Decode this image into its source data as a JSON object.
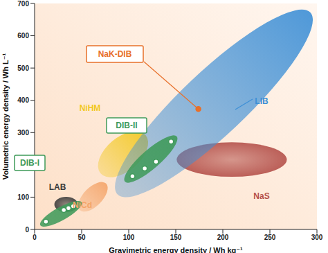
{
  "chart_data": {
    "type": "scatter",
    "x_label": "Gravimetric energy density / Wh kg⁻¹",
    "y_label": "Volumetric energy density / Wh L⁻¹",
    "xlim": [
      0,
      300
    ],
    "xticks": [
      0,
      50,
      100,
      150,
      200,
      250,
      300
    ],
    "ylim": [
      0,
      700
    ],
    "yticks": [
      0,
      100,
      200,
      300,
      400,
      500,
      600,
      700
    ],
    "regions": [
      {
        "name": "NiHM",
        "color": "#f2c81e",
        "major_axis": [
          [
            70,
            174
          ],
          [
            118,
            292
          ]
        ],
        "minor_axis": 18
      },
      {
        "name": "NiCd",
        "color": "#f4a469",
        "major_axis": [
          [
            48,
            60
          ],
          [
            76,
            142
          ]
        ],
        "minor_axis": 10
      },
      {
        "name": "LAB",
        "color": "#3a3a3a",
        "x_range": [
          21,
          46
        ],
        "y_range": [
          54,
          101
        ]
      },
      {
        "name": "NaS",
        "color": "#b4504a",
        "x_range": [
          151,
          268
        ],
        "y_range": [
          163,
          270
        ]
      },
      {
        "name": "LIB",
        "color": "#3d8fd6",
        "major_axis": [
          [
            88,
            109
          ],
          [
            293,
            672
          ]
        ],
        "minor_axis": 34
      }
    ],
    "series": [
      {
        "name": "DIB-I",
        "color": "#3f9a5a",
        "marker": "circle",
        "x": [
          12,
          31,
          36,
          41
        ],
        "values": [
          24,
          60,
          66,
          72
        ],
        "region": {
          "major_axis": [
            [
              6,
              13
            ],
            [
              50,
              84
            ]
          ],
          "minor_axis": 7
        }
      },
      {
        "name": "DIB-II",
        "color": "#3f9a5a",
        "marker": "circle",
        "x": [
          104,
          117,
          129,
          145
        ],
        "values": [
          165,
          189,
          210,
          272
        ],
        "region": {
          "major_axis": [
            [
              96,
              148
            ],
            [
              151,
              288
            ]
          ],
          "minor_axis": 10
        }
      },
      {
        "name": "NaK-DIB",
        "color": "#e8702a",
        "marker": "circle",
        "x": [
          174
        ],
        "values": [
          373
        ]
      }
    ]
  }
}
